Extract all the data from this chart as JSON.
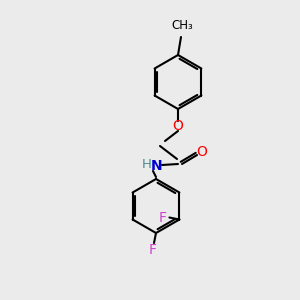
{
  "bg_color": "#ebebeb",
  "bond_color": "#000000",
  "bond_width": 1.5,
  "atom_colors": {
    "O": "#ff0000",
    "N": "#0000cd",
    "F": "#cc44cc",
    "C": "#000000",
    "H": "#4a8f8f"
  },
  "font_size": 10,
  "fig_size": [
    3.0,
    3.0
  ],
  "dpi": 100,
  "bg_color_fig": "#ebebeb"
}
